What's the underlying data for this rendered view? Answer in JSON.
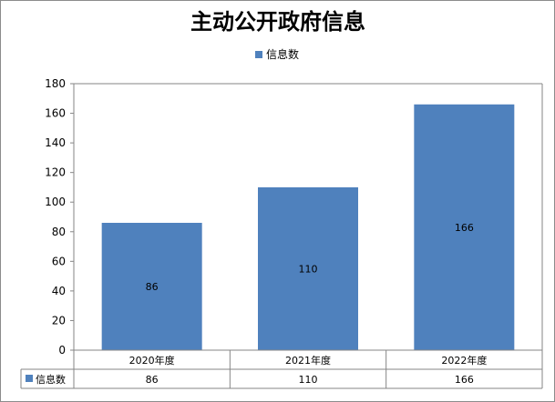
{
  "chart_data": {
    "type": "bar",
    "title": "主动公开政府信息",
    "categories": [
      "2020年度",
      "2021年度",
      "2022年度"
    ],
    "series": [
      {
        "name": "信息数",
        "values": [
          86,
          110,
          166
        ],
        "color": "#4f81bd"
      }
    ],
    "ylim": [
      0,
      180
    ],
    "yticks": [
      0,
      20,
      40,
      60,
      80,
      100,
      120,
      140,
      160,
      180
    ],
    "xlabel": "",
    "ylabel": "",
    "grid": false,
    "legend": "top-center",
    "data_labels": true,
    "data_table": true
  }
}
